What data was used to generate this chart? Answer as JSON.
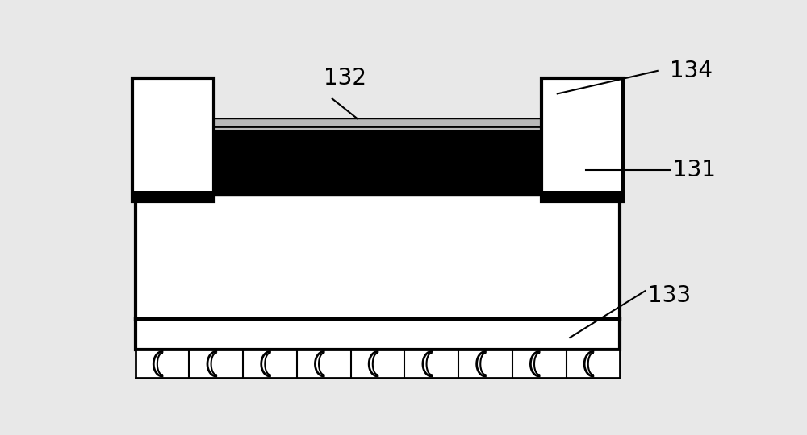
{
  "bg_color": "#e8e8e8",
  "line_color": "#000000",
  "black_fill": "#000000",
  "gray_fill": "#b8b8b8",
  "white_fill": "#ffffff",
  "label_132": "132",
  "label_134": "134",
  "label_131": "131",
  "label_133": "133",
  "font_size": 20,
  "num_coils": 9
}
